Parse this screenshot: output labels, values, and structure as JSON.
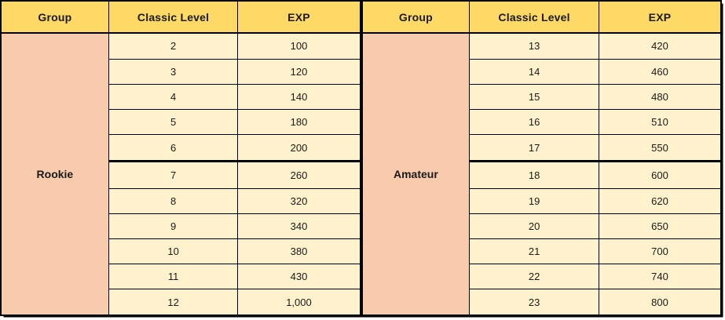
{
  "table": {
    "headers": [
      "Group",
      "Classic Level",
      "EXP"
    ],
    "thick_divider_before_row_index": 5,
    "sections": [
      {
        "group": "Rookie",
        "rows": [
          [
            "2",
            "100"
          ],
          [
            "3",
            "120"
          ],
          [
            "4",
            "140"
          ],
          [
            "5",
            "180"
          ],
          [
            "6",
            "200"
          ],
          [
            "7",
            "260"
          ],
          [
            "8",
            "320"
          ],
          [
            "9",
            "340"
          ],
          [
            "10",
            "380"
          ],
          [
            "11",
            "430"
          ],
          [
            "12",
            "1,000"
          ]
        ]
      },
      {
        "group": "Amateur",
        "rows": [
          [
            "13",
            "420"
          ],
          [
            "14",
            "460"
          ],
          [
            "15",
            "480"
          ],
          [
            "16",
            "510"
          ],
          [
            "17",
            "550"
          ],
          [
            "18",
            "600"
          ],
          [
            "19",
            "620"
          ],
          [
            "20",
            "650"
          ],
          [
            "21",
            "700"
          ],
          [
            "22",
            "740"
          ],
          [
            "23",
            "800"
          ]
        ]
      }
    ]
  },
  "colors": {
    "header_bg": "#FFD966",
    "group_bg": "#F8CBAD",
    "cell_bg": "#FFF2CC",
    "border": "#000000",
    "text": "#1a1a1a"
  }
}
